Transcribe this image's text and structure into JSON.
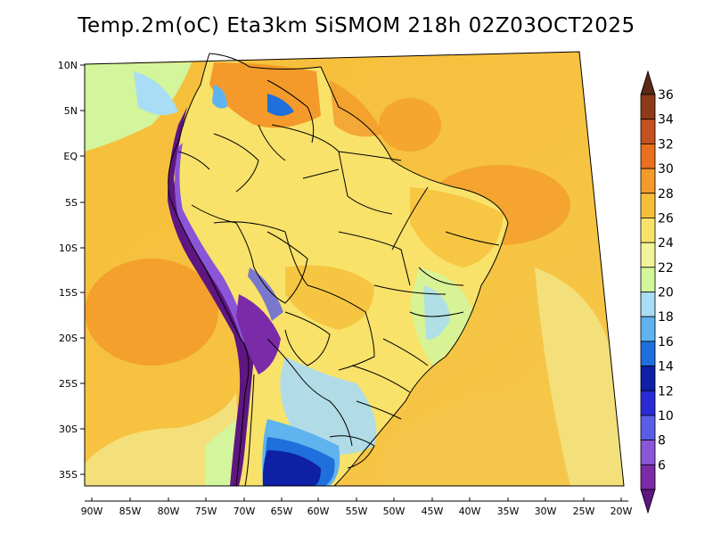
{
  "title": "Temp.2m(oC) Eta3km SiSMOM 218h 02Z03OCT2025",
  "latitude_labels": [
    "10N",
    "5N",
    "EQ",
    "5S",
    "10S",
    "15S",
    "20S",
    "25S",
    "30S",
    "35S"
  ],
  "longitude_labels": [
    "90W",
    "85W",
    "80W",
    "75W",
    "70W",
    "65W",
    "60W",
    "55W",
    "50W",
    "45W",
    "40W",
    "35W",
    "30W",
    "25W",
    "20W"
  ],
  "colorbar": {
    "labels": [
      "36",
      "34",
      "32",
      "30",
      "28",
      "26",
      "24",
      "22",
      "20",
      "18",
      "16",
      "14",
      "12",
      "10",
      "8",
      "6"
    ],
    "colors": [
      "#5a2a14",
      "#8e3a18",
      "#c4521e",
      "#e8701e",
      "#f39a2a",
      "#f6bf3a",
      "#f8e26a",
      "#f3f39a",
      "#d3f59b",
      "#a9dcf5",
      "#5fb3ee",
      "#1f6fdc",
      "#0d20a6",
      "#2a2bd4",
      "#5a5ee6",
      "#8a55d6",
      "#7b2aa8",
      "#5e1680"
    ]
  },
  "colors": {
    "ocean_warm": "#f6bf3a",
    "ocean_hot": "#f39a2a",
    "land_warm": "#f8e26a",
    "andes_cold": "#5e1680",
    "south_cold": "#0d20a6",
    "coast_cool": "#a9dcf5"
  }
}
